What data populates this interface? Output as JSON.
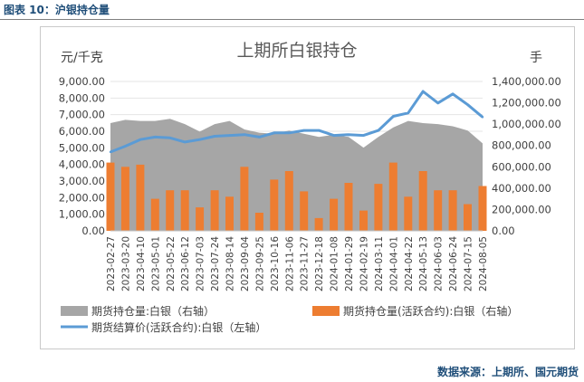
{
  "figure_label": "图表 10：沪银持仓量",
  "source_note": "数据来源：上期所、国元期货",
  "chart_data": {
    "type": "bar",
    "title": "上期所白银持仓",
    "y_left_unit": "元/千克",
    "y_right_unit": "手",
    "y_left_ticks": [
      "0.00",
      "1,000.00",
      "2,000.00",
      "3,000.00",
      "4,000.00",
      "5,000.00",
      "6,000.00",
      "7,000.00",
      "8,000.00",
      "9,000.00"
    ],
    "y_right_ticks": [
      "0.00",
      "200,000.00",
      "400,000.00",
      "600,000.00",
      "800,000.00",
      "1,000,000.00",
      "1,200,000.00",
      "1,400,000.00"
    ],
    "y_left_range": [
      0,
      9000
    ],
    "y_right_range": [
      0,
      1400000
    ],
    "x_ticks": [
      "2023-02-27",
      "2023-03-20",
      "2023-04-10",
      "2023-05-01",
      "2023-05-22",
      "2023-06-12",
      "2023-07-03",
      "2023-07-24",
      "2023-08-14",
      "2023-09-04",
      "2023-09-25",
      "2023-10-16",
      "2023-11-06",
      "2023-11-27",
      "2023-12-18",
      "2024-01-08",
      "2024-01-29",
      "2024-02-19",
      "2024-03-11",
      "2024-04-01",
      "2024-04-22",
      "2024-05-13",
      "2024-06-03",
      "2024-06-24",
      "2024-07-15",
      "2024-08-05"
    ],
    "series": [
      {
        "name": "期货持仓量:白银（右轴）",
        "kind": "area",
        "axis": "right",
        "color": "#A6A6A6",
        "x": [
          "2023-02-27",
          "2023-03-20",
          "2023-04-10",
          "2023-05-01",
          "2023-05-22",
          "2023-06-12",
          "2023-07-03",
          "2023-07-24",
          "2023-08-14",
          "2023-09-04",
          "2023-09-25",
          "2023-10-16",
          "2023-11-06",
          "2023-11-27",
          "2023-12-18",
          "2024-01-08",
          "2024-01-29",
          "2024-02-19",
          "2024-03-11",
          "2024-04-01",
          "2024-04-22",
          "2024-05-13",
          "2024-06-03",
          "2024-06-24",
          "2024-07-15",
          "2024-08-05"
        ],
        "values": [
          1010000,
          1040000,
          1030000,
          1030000,
          1050000,
          1000000,
          930000,
          1000000,
          1030000,
          950000,
          920000,
          910000,
          940000,
          910000,
          880000,
          900000,
          880000,
          780000,
          880000,
          970000,
          1030000,
          1010000,
          1000000,
          980000,
          940000,
          820000
        ]
      },
      {
        "name": "期货持仓量(活跃合约):白银（右轴）",
        "kind": "bar",
        "axis": "right",
        "color": "#ED7D31",
        "x": [
          "2023-02-27",
          "2023-03-20",
          "2023-04-10",
          "2023-05-01",
          "2023-05-22",
          "2023-06-12",
          "2023-07-03",
          "2023-07-24",
          "2023-08-14",
          "2023-09-04",
          "2023-09-25",
          "2023-10-16",
          "2023-11-06",
          "2023-11-27",
          "2023-12-18",
          "2024-01-08",
          "2024-01-29",
          "2024-02-19",
          "2024-03-11",
          "2024-04-01",
          "2024-04-22",
          "2024-05-13",
          "2024-06-03",
          "2024-06-24",
          "2024-07-15",
          "2024-08-05"
        ],
        "values": [
          640000,
          600000,
          620000,
          300000,
          380000,
          380000,
          220000,
          380000,
          320000,
          600000,
          170000,
          480000,
          560000,
          370000,
          120000,
          300000,
          450000,
          190000,
          440000,
          640000,
          320000,
          560000,
          380000,
          380000,
          250000,
          420000
        ]
      },
      {
        "name": "期货结算价(活跃合约):白银（左轴）",
        "kind": "line",
        "axis": "left",
        "color": "#5B9BD5",
        "x": [
          "2023-02-27",
          "2023-03-20",
          "2023-04-10",
          "2023-05-01",
          "2023-05-22",
          "2023-06-12",
          "2023-07-03",
          "2023-07-24",
          "2023-08-14",
          "2023-09-04",
          "2023-09-25",
          "2023-10-16",
          "2023-11-06",
          "2023-11-27",
          "2023-12-18",
          "2024-01-08",
          "2024-01-29",
          "2024-02-19",
          "2024-03-11",
          "2024-04-01",
          "2024-04-22",
          "2024-05-13",
          "2024-06-03",
          "2024-06-24",
          "2024-07-15",
          "2024-08-05"
        ],
        "values": [
          4750,
          5100,
          5500,
          5650,
          5600,
          5350,
          5500,
          5700,
          5750,
          5800,
          5650,
          5900,
          5900,
          6050,
          6050,
          5750,
          5800,
          5750,
          6050,
          6900,
          7100,
          8400,
          7700,
          8250,
          7600,
          6850
        ]
      }
    ]
  }
}
